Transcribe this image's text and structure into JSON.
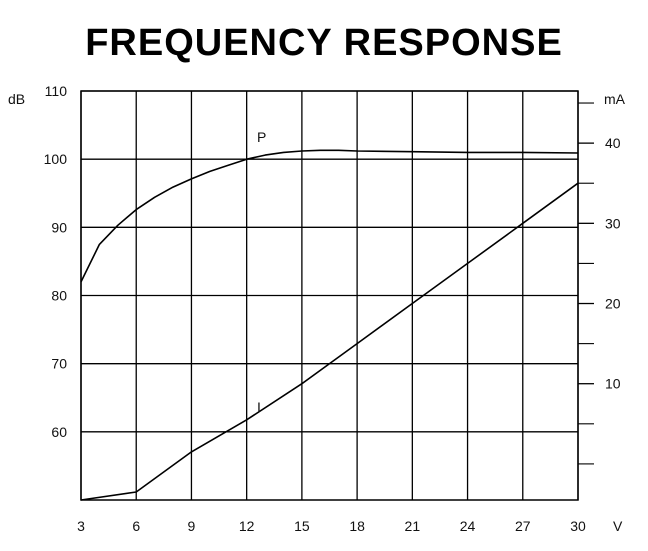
{
  "chart_data": {
    "type": "line",
    "title": "FREQUENCY RESPONSE",
    "x_unit": "V",
    "y_left_unit": "dB",
    "y_right_unit": "mA",
    "xlim": [
      3,
      30
    ],
    "x_ticks": [
      3,
      6,
      9,
      12,
      15,
      18,
      21,
      24,
      27,
      30
    ],
    "ylim_left": [
      50,
      110
    ],
    "y_left_ticks": [
      60,
      70,
      80,
      90,
      100,
      110
    ],
    "ylim_right": [
      -4.5,
      46.5
    ],
    "y_right_ticks": [
      10,
      20,
      30,
      40
    ],
    "grid": true,
    "series": [
      {
        "name": "P",
        "axis": "left",
        "x": [
          3,
          4,
          5,
          6,
          7,
          8,
          9,
          10,
          11,
          12,
          13,
          14,
          15,
          16,
          17,
          18,
          21,
          24,
          27,
          30
        ],
        "y": [
          82,
          87.5,
          90.3,
          92.6,
          94.4,
          95.9,
          97.1,
          98.2,
          99.1,
          100.0,
          100.6,
          101.0,
          101.2,
          101.3,
          101.3,
          101.2,
          101.1,
          101.0,
          101.0,
          100.9
        ]
      },
      {
        "name": "I",
        "axis": "right",
        "x": [
          3,
          6,
          9,
          12,
          15,
          18,
          21,
          24,
          27,
          30
        ],
        "y": [
          -4.5,
          -3.5,
          1.5,
          5.5,
          10.0,
          15.0,
          20.0,
          25.0,
          30.0,
          35.0
        ]
      }
    ]
  }
}
